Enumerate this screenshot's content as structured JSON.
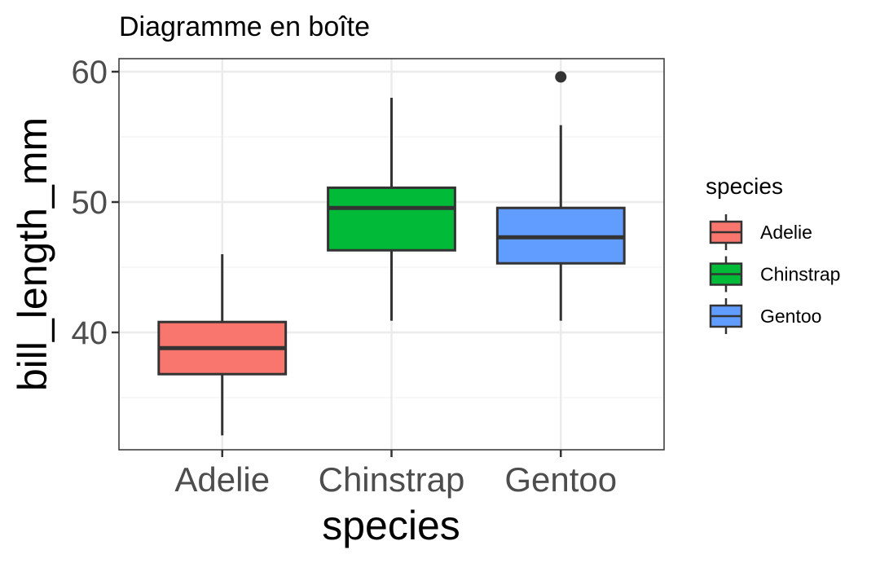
{
  "chart_data": {
    "type": "boxplot",
    "title": "Diagramme en boîte",
    "xlabel": "species",
    "ylabel": "bill_length_mm",
    "ylim": [
      31,
      61
    ],
    "yticks": [
      40,
      50,
      60
    ],
    "grid": true,
    "legend_title": "species",
    "legend_position": "right",
    "categories": [
      "Adelie",
      "Chinstrap",
      "Gentoo"
    ],
    "colors": [
      "#F8766D",
      "#00BA38",
      "#619CFF"
    ],
    "boxes": [
      {
        "name": "Adelie",
        "whisker_low": 32.1,
        "q1": 36.8,
        "median": 38.8,
        "q3": 40.8,
        "whisker_high": 46.0,
        "outliers": []
      },
      {
        "name": "Chinstrap",
        "whisker_low": 40.9,
        "q1": 46.3,
        "median": 49.55,
        "q3": 51.1,
        "whisker_high": 58.0,
        "outliers": []
      },
      {
        "name": "Gentoo",
        "whisker_low": 40.9,
        "q1": 45.3,
        "median": 47.3,
        "q3": 49.55,
        "whisker_high": 55.9,
        "outliers": [
          59.6
        ]
      }
    ]
  }
}
